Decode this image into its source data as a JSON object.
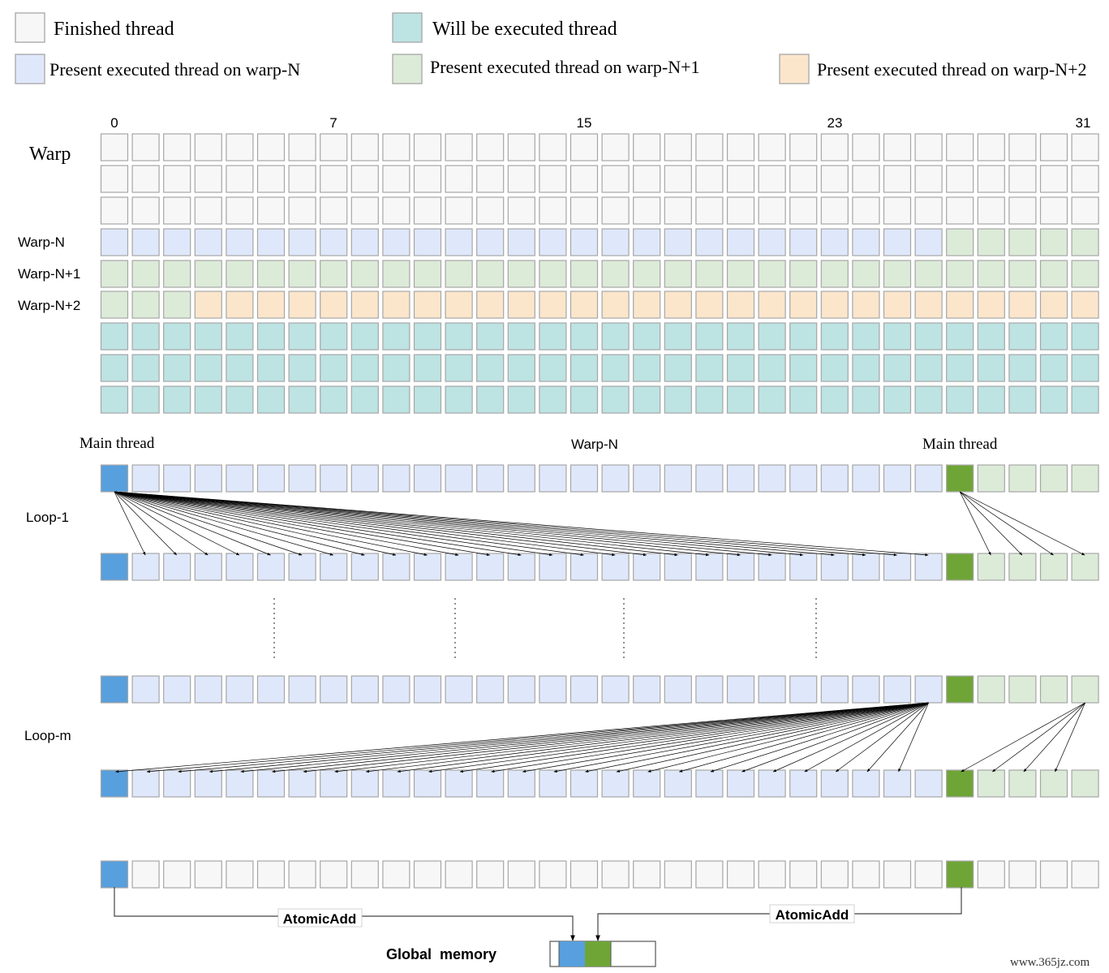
{
  "legend": [
    {
      "key": "finished",
      "label": "Finished thread",
      "fill": "#f7f7f7"
    },
    {
      "key": "will",
      "label": "Will be executed thread",
      "fill": "#bde3e3"
    },
    {
      "key": "warpN",
      "label": "Present executed thread on warp-N",
      "fill": "#dfe8fb"
    },
    {
      "key": "warpN1",
      "label": "Present executed thread on warp-N+1",
      "fill": "#dcebd8"
    },
    {
      "key": "warpN2",
      "label": "Present executed thread on warp-N+2",
      "fill": "#fbe6cc"
    }
  ],
  "colors": {
    "finished": "#f7f7f7",
    "will": "#bde3e3",
    "warpN": "#dfe8fb",
    "warpN1": "#dcebd8",
    "warpN2": "#fbe6cc",
    "mainBlue": "#579fdd",
    "mainGreen": "#6fa537",
    "stroke": "#a6a6a6"
  },
  "thread_indices": [
    "0",
    "7",
    "15",
    "23",
    "31"
  ],
  "warp_grid": {
    "title": "Warp",
    "row_labels": [
      "",
      "",
      "",
      "Warp-N",
      "Warp-N+1",
      "Warp-N+2",
      "",
      "",
      ""
    ]
  },
  "loop_section": {
    "main_thread_left": "Main thread",
    "warp_label": "Warp-N",
    "main_thread_right": "Main thread",
    "loop1_label": "Loop-1",
    "loopm_label": "Loop-m"
  },
  "atomic_add_left": "AtomicAdd",
  "atomic_add_right": "AtomicAdd",
  "global_memory_label": "Global  memory",
  "watermark": "www.365jz.com"
}
